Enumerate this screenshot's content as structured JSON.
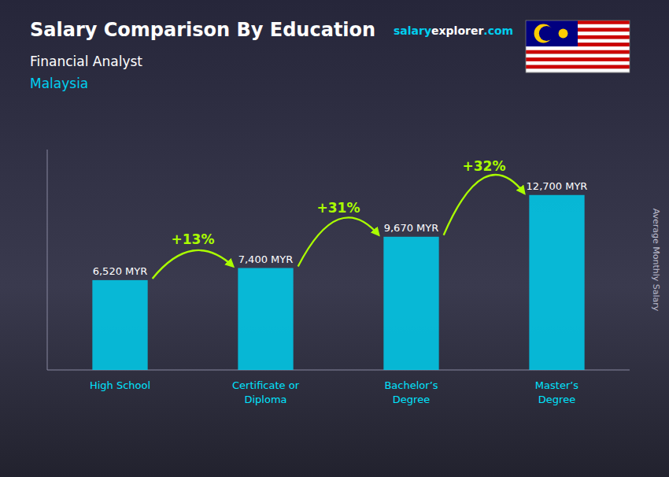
{
  "chart_data": {
    "type": "bar",
    "title": "Salary Comparison By Education",
    "subtitle": "Financial Analyst",
    "country": {
      "text": "Malaysia",
      "color": "#00cfef"
    },
    "brand": [
      {
        "text": "salary",
        "color": "#00cfef"
      },
      {
        "text": "explorer",
        "color": "#ffffff"
      },
      {
        "text": ".com",
        "color": "#00cfef"
      }
    ],
    "ylabel": "Average Monthly Salary",
    "categories": [
      "High School",
      "Certificate or\nDiploma",
      "Bachelor’s\nDegree",
      "Master’s\nDegree"
    ],
    "values": [
      6520,
      7400,
      9670,
      12700
    ],
    "value_labels": [
      "6,520 MYR",
      "7,400 MYR",
      "9,670 MYR",
      "12,700 MYR"
    ],
    "data_labels": true,
    "pct_changes": [
      "+13%",
      "+31%",
      "+32%"
    ],
    "pct_color": "#aaff00",
    "color": "#00cfef",
    "xlabel_color": "#00e5ff",
    "ylim": [
      0,
      16000
    ],
    "yticks": [],
    "tick_labels": "x",
    "grid": false
  }
}
